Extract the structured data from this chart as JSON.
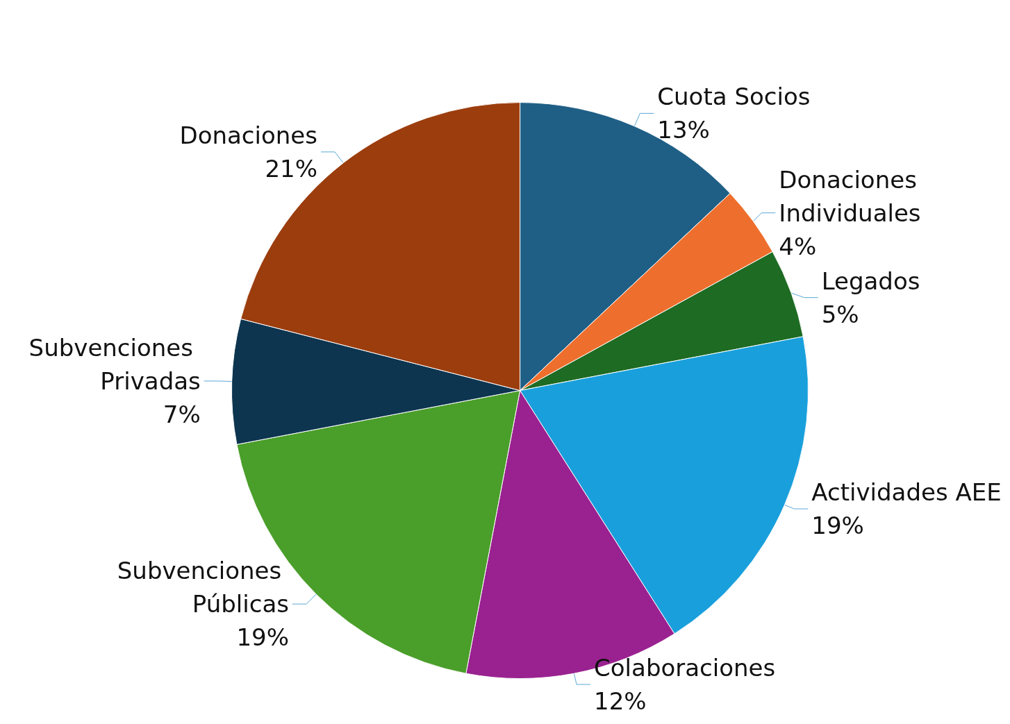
{
  "chart_data": {
    "type": "pie",
    "categories": [
      "Cuota Socios",
      "Donaciones Individuales",
      "Legados",
      "Actividades AEE",
      "Colaboraciones",
      "Subvenciones Públicas",
      "Subvenciones Privadas",
      "Donaciones"
    ],
    "values": [
      13,
      4,
      5,
      19,
      12,
      19,
      7,
      21
    ],
    "value_labels": [
      "13%",
      "4%",
      "5%",
      "19%",
      "12%",
      "19%",
      "7%",
      "21%"
    ],
    "colors": [
      "#1f5f86",
      "#ee6f2d",
      "#1e6b23",
      "#19a0dc",
      "#9a2290",
      "#4a9e2a",
      "#0d3550",
      "#9c3d0e"
    ],
    "legend": false
  }
}
